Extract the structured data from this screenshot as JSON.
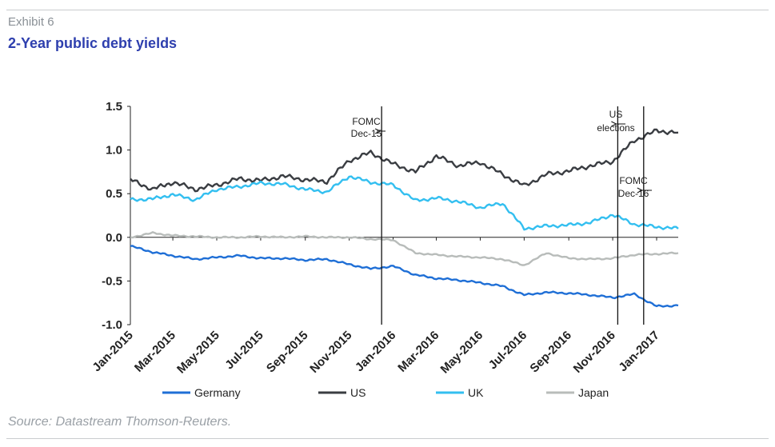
{
  "exhibit": "Exhibit 6",
  "title": "2-Year public debt yields",
  "source": "Source: Datastream Thomson-Reuters.",
  "chart_data": {
    "type": "line",
    "title": "2-Year public debt yields",
    "xlabel": "",
    "ylabel": "",
    "ylim": [
      -1.0,
      1.5
    ],
    "yticks": [
      "1.5",
      "1.0",
      "0.5",
      "0.0",
      "-0.5",
      "-1.0"
    ],
    "ytick_values": [
      1.5,
      1.0,
      0.5,
      0.0,
      -0.5,
      -1.0
    ],
    "xlim": [
      "2015-01-01",
      "2017-01-31"
    ],
    "xticks": [
      "Jan-2015",
      "Mar-2015",
      "May-2015",
      "Jul-2015",
      "Sep-2015",
      "Nov-2015",
      "Jan-2016",
      "Mar-2016",
      "May-2016",
      "Jul-2016",
      "Sep-2016",
      "Nov-2016",
      "Jan-2017"
    ],
    "grid": false,
    "legend_position": "bottom",
    "series": [
      {
        "name": "Germany",
        "color": "#1f6fd6",
        "x": [
          "2015-01-01",
          "2015-02-01",
          "2015-03-01",
          "2015-04-01",
          "2015-05-01",
          "2015-06-01",
          "2015-07-01",
          "2015-08-01",
          "2015-09-01",
          "2015-10-01",
          "2015-11-01",
          "2015-12-01",
          "2016-01-01",
          "2016-02-01",
          "2016-03-01",
          "2016-04-01",
          "2016-05-01",
          "2016-06-01",
          "2016-07-01",
          "2016-08-01",
          "2016-09-01",
          "2016-10-01",
          "2016-11-01",
          "2016-12-01",
          "2017-01-01",
          "2017-01-31"
        ],
        "values": [
          -0.1,
          -0.17,
          -0.21,
          -0.25,
          -0.23,
          -0.21,
          -0.24,
          -0.24,
          -0.26,
          -0.25,
          -0.31,
          -0.36,
          -0.33,
          -0.43,
          -0.47,
          -0.49,
          -0.52,
          -0.56,
          -0.66,
          -0.63,
          -0.64,
          -0.66,
          -0.69,
          -0.65,
          -0.79,
          -0.78
        ]
      },
      {
        "name": "US",
        "color": "#3a3d42",
        "x": [
          "2015-01-01",
          "2015-02-01",
          "2015-03-01",
          "2015-04-01",
          "2015-05-01",
          "2015-06-01",
          "2015-07-01",
          "2015-08-01",
          "2015-09-01",
          "2015-10-01",
          "2015-11-01",
          "2015-12-01",
          "2016-01-01",
          "2016-02-01",
          "2016-03-01",
          "2016-04-01",
          "2016-05-01",
          "2016-06-01",
          "2016-07-01",
          "2016-08-01",
          "2016-09-01",
          "2016-10-01",
          "2016-11-01",
          "2016-12-01",
          "2017-01-01",
          "2017-01-31"
        ],
        "values": [
          0.66,
          0.55,
          0.63,
          0.55,
          0.6,
          0.67,
          0.65,
          0.7,
          0.66,
          0.64,
          0.88,
          0.97,
          0.84,
          0.75,
          0.93,
          0.82,
          0.86,
          0.72,
          0.59,
          0.72,
          0.76,
          0.82,
          0.87,
          1.11,
          1.22,
          1.2
        ]
      },
      {
        "name": "UK",
        "color": "#33bff0",
        "x": [
          "2015-01-01",
          "2015-02-01",
          "2015-03-01",
          "2015-04-01",
          "2015-05-01",
          "2015-06-01",
          "2015-07-01",
          "2015-08-01",
          "2015-09-01",
          "2015-10-01",
          "2015-11-01",
          "2015-12-01",
          "2016-01-01",
          "2016-02-01",
          "2016-03-01",
          "2016-04-01",
          "2016-05-01",
          "2016-06-01",
          "2016-07-01",
          "2016-08-01",
          "2016-09-01",
          "2016-10-01",
          "2016-11-01",
          "2016-12-01",
          "2017-01-01",
          "2017-01-31"
        ],
        "values": [
          0.43,
          0.44,
          0.49,
          0.43,
          0.55,
          0.58,
          0.62,
          0.61,
          0.55,
          0.52,
          0.7,
          0.63,
          0.6,
          0.42,
          0.45,
          0.41,
          0.34,
          0.39,
          0.1,
          0.13,
          0.14,
          0.17,
          0.26,
          0.15,
          0.12,
          0.1
        ]
      },
      {
        "name": "Japan",
        "color": "#b8bcba",
        "x": [
          "2015-01-01",
          "2015-02-01",
          "2015-03-01",
          "2015-04-01",
          "2015-05-01",
          "2015-06-01",
          "2015-07-01",
          "2015-08-01",
          "2015-09-01",
          "2015-10-01",
          "2015-11-01",
          "2015-12-01",
          "2016-01-01",
          "2016-02-01",
          "2016-03-01",
          "2016-04-01",
          "2016-05-01",
          "2016-06-01",
          "2016-07-01",
          "2016-08-01",
          "2016-09-01",
          "2016-10-01",
          "2016-11-01",
          "2016-12-01",
          "2017-01-01",
          "2017-01-31"
        ],
        "values": [
          0.0,
          0.05,
          0.02,
          0.01,
          0.0,
          0.0,
          0.01,
          0.0,
          0.01,
          0.0,
          0.0,
          -0.02,
          -0.03,
          -0.18,
          -0.2,
          -0.22,
          -0.23,
          -0.25,
          -0.32,
          -0.18,
          -0.24,
          -0.25,
          -0.24,
          -0.2,
          -0.19,
          -0.18
        ]
      }
    ],
    "annotations": [
      {
        "label": "FOMC",
        "label2": "Dec-15",
        "date": "2015-12-16"
      },
      {
        "label": "US",
        "label2": "elections",
        "date": "2016-11-08"
      },
      {
        "label": "FOMC",
        "label2": "Dec-16",
        "date": "2016-12-14"
      }
    ]
  }
}
